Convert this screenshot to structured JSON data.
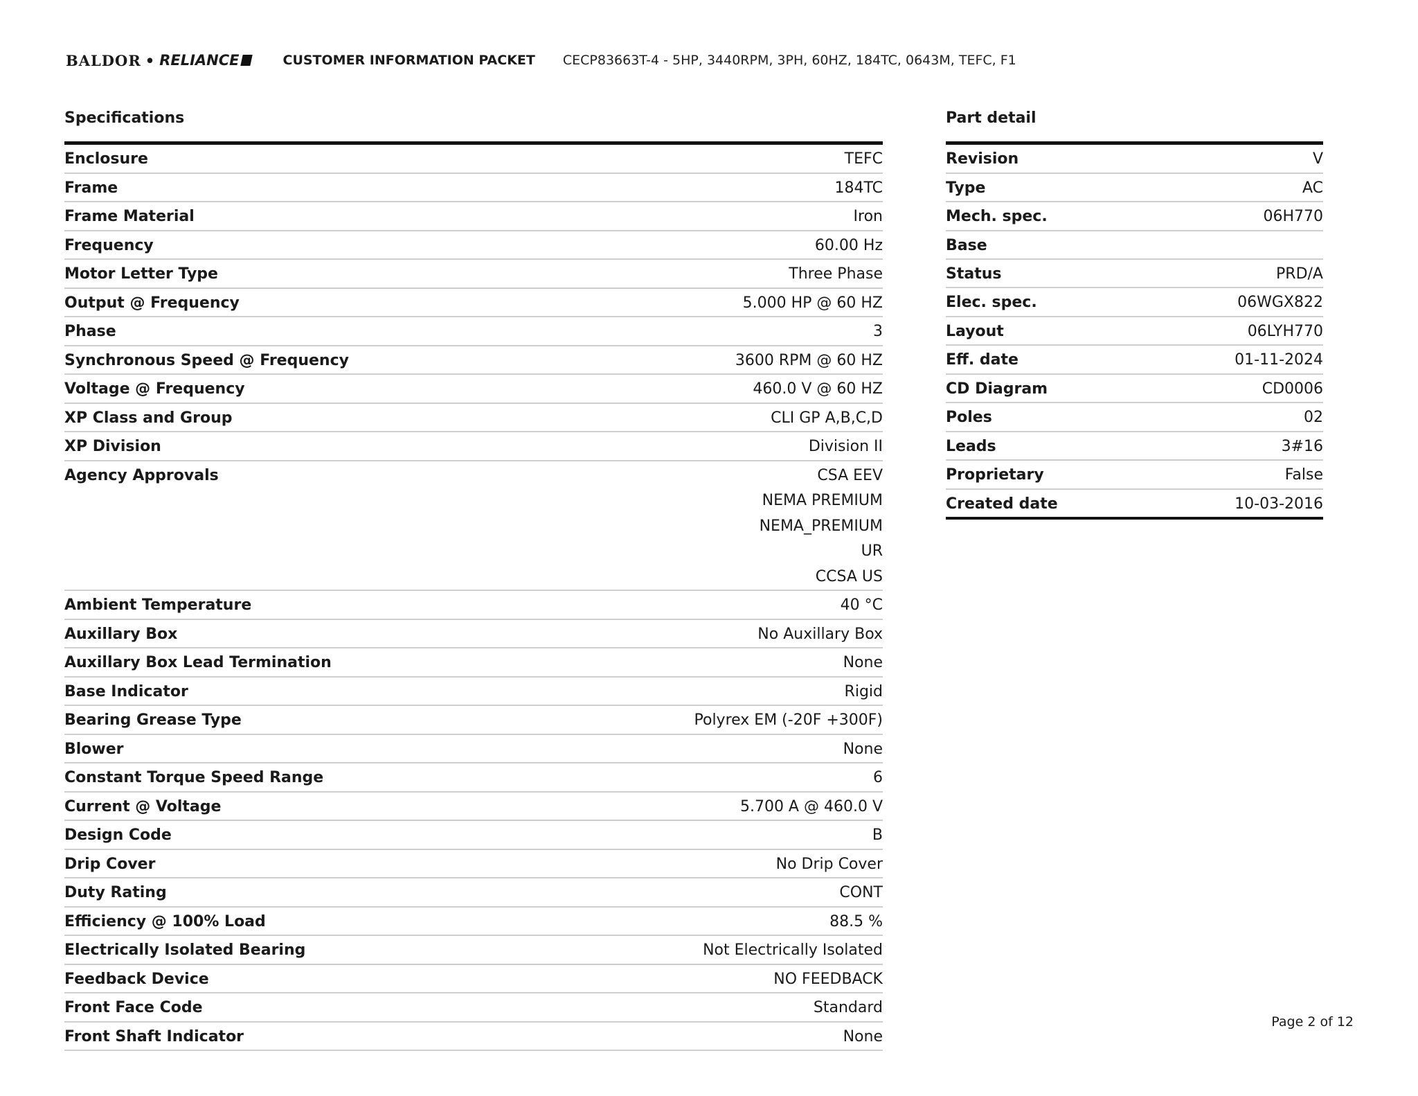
{
  "header": {
    "logo_text": "BALDOR • RELIANCE",
    "title": "CUSTOMER INFORMATION PACKET",
    "description": "CECP83663T-4 - 5HP, 3440RPM, 3PH, 60HZ, 184TC, 0643M, TEFC, F1"
  },
  "specifications": {
    "title": "Specifications",
    "rows": [
      {
        "label": "Enclosure",
        "values": [
          "TEFC"
        ]
      },
      {
        "label": "Frame",
        "values": [
          "184TC"
        ]
      },
      {
        "label": "Frame Material",
        "values": [
          "Iron"
        ]
      },
      {
        "label": "Frequency",
        "values": [
          "60.00 Hz"
        ]
      },
      {
        "label": "Motor Letter Type",
        "values": [
          "Three Phase"
        ]
      },
      {
        "label": "Output @ Frequency",
        "values": [
          "5.000 HP @ 60 HZ"
        ]
      },
      {
        "label": "Phase",
        "values": [
          "3"
        ]
      },
      {
        "label": "Synchronous Speed @ Frequency",
        "values": [
          "3600 RPM @ 60 HZ"
        ]
      },
      {
        "label": "Voltage @ Frequency",
        "values": [
          "460.0 V @ 60 HZ"
        ]
      },
      {
        "label": "XP Class and Group",
        "values": [
          "CLI GP A,B,C,D"
        ]
      },
      {
        "label": "XP Division",
        "values": [
          "Division II"
        ]
      },
      {
        "label": "Agency Approvals",
        "values": [
          "CSA EEV",
          "NEMA PREMIUM",
          "NEMA_PREMIUM",
          "UR",
          "CCSA US"
        ]
      },
      {
        "label": "Ambient Temperature",
        "values": [
          "40 °C"
        ]
      },
      {
        "label": "Auxillary Box",
        "values": [
          "No Auxillary Box"
        ]
      },
      {
        "label": "Auxillary Box Lead Termination",
        "values": [
          "None"
        ]
      },
      {
        "label": "Base Indicator",
        "values": [
          "Rigid"
        ]
      },
      {
        "label": "Bearing Grease Type",
        "values": [
          "Polyrex EM (-20F +300F)"
        ]
      },
      {
        "label": "Blower",
        "values": [
          "None"
        ]
      },
      {
        "label": "Constant Torque Speed Range",
        "values": [
          "6"
        ]
      },
      {
        "label": "Current @ Voltage",
        "values": [
          "5.700 A @ 460.0 V"
        ]
      },
      {
        "label": "Design Code",
        "values": [
          "B"
        ]
      },
      {
        "label": "Drip Cover",
        "values": [
          "No Drip Cover"
        ]
      },
      {
        "label": "Duty Rating",
        "values": [
          "CONT"
        ]
      },
      {
        "label": "Efficiency @ 100% Load",
        "values": [
          "88.5 %"
        ]
      },
      {
        "label": "Electrically Isolated Bearing",
        "values": [
          "Not Electrically Isolated"
        ]
      },
      {
        "label": "Feedback Device",
        "values": [
          "NO FEEDBACK"
        ]
      },
      {
        "label": "Front Face Code",
        "values": [
          "Standard"
        ]
      },
      {
        "label": "Front Shaft Indicator",
        "values": [
          "None"
        ]
      }
    ]
  },
  "part_detail": {
    "title": "Part detail",
    "rows": [
      {
        "label": "Revision",
        "values": [
          "V"
        ]
      },
      {
        "label": "Type",
        "values": [
          "AC"
        ]
      },
      {
        "label": "Mech. spec.",
        "values": [
          "06H770"
        ]
      },
      {
        "label": "Base",
        "values": [
          ""
        ]
      },
      {
        "label": "Status",
        "values": [
          "PRD/A"
        ]
      },
      {
        "label": "Elec. spec.",
        "values": [
          "06WGX822"
        ]
      },
      {
        "label": "Layout",
        "values": [
          "06LYH770"
        ]
      },
      {
        "label": "Eff. date",
        "values": [
          "01-11-2024"
        ]
      },
      {
        "label": "CD Diagram",
        "values": [
          "CD0006"
        ]
      },
      {
        "label": "Poles",
        "values": [
          "02"
        ]
      },
      {
        "label": "Leads",
        "values": [
          "3#16"
        ]
      },
      {
        "label": "Proprietary",
        "values": [
          "False"
        ]
      },
      {
        "label": "Created date",
        "values": [
          "10-03-2016"
        ]
      }
    ]
  },
  "footer": {
    "page_label": "Page 2 of 12"
  }
}
